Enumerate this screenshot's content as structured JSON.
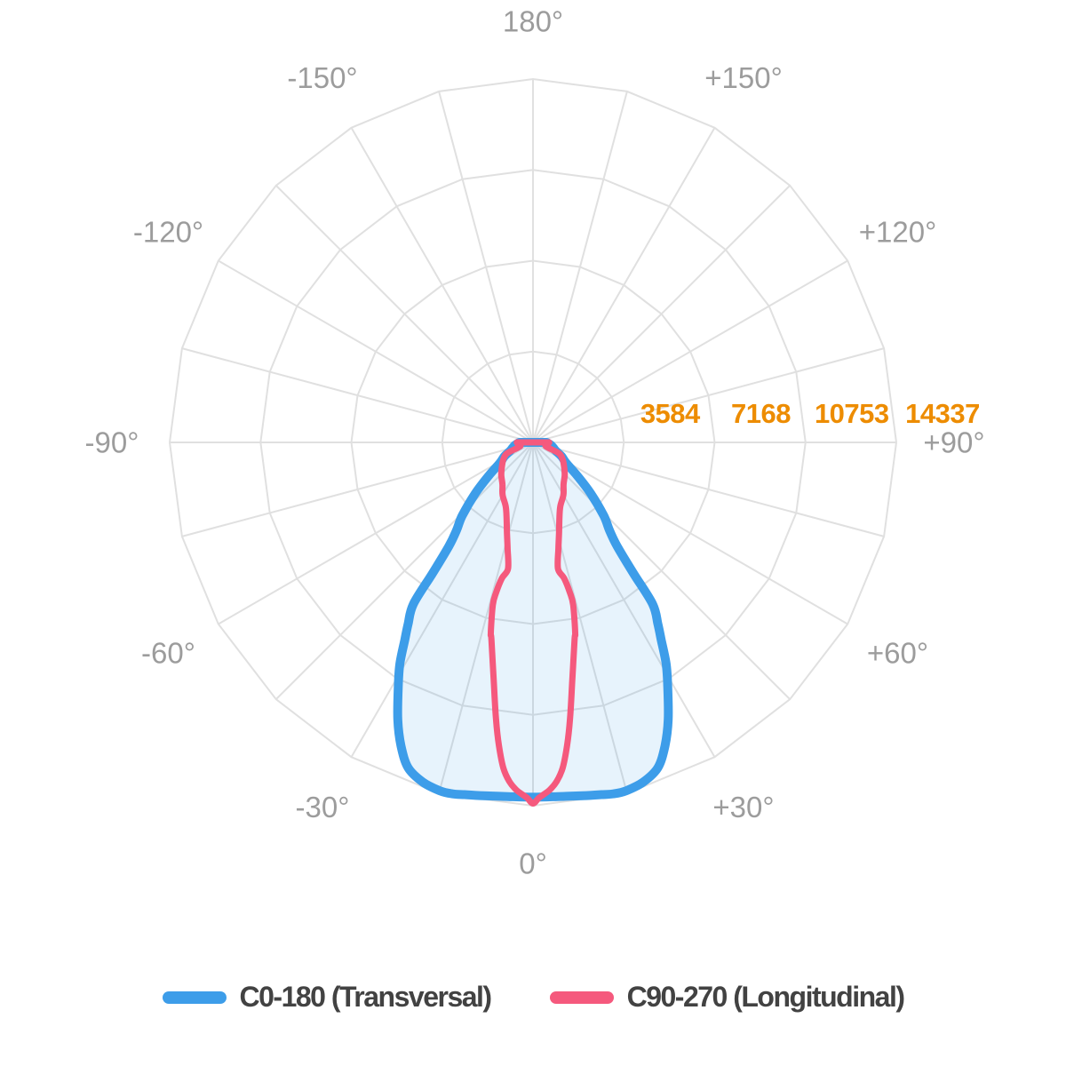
{
  "chart_data": {
    "type": "line",
    "variant": "polar-photometric-light-distribution",
    "orientation": "zero-angle-at-bottom",
    "angle_axis": {
      "label_color": "#9c9c9c",
      "spoke_step_deg": 15,
      "labels": [
        {
          "deg": 0,
          "label": "0°"
        },
        {
          "deg": 30,
          "label": "+30°"
        },
        {
          "deg": 60,
          "label": "+60°"
        },
        {
          "deg": 90,
          "label": "+90°"
        },
        {
          "deg": 120,
          "label": "+120°"
        },
        {
          "deg": 150,
          "label": "+150°"
        },
        {
          "deg": 180,
          "label": "180°"
        },
        {
          "deg": -150,
          "label": "-150°"
        },
        {
          "deg": -120,
          "label": "-120°"
        },
        {
          "deg": -90,
          "label": "-90°"
        },
        {
          "deg": -60,
          "label": "-60°"
        },
        {
          "deg": -30,
          "label": "-30°"
        }
      ]
    },
    "radius_axis": {
      "max": 14337,
      "rings": 4,
      "tick_color": "#ED8C00",
      "ticks": [
        {
          "value": 3584,
          "label": "3584"
        },
        {
          "value": 7168,
          "label": "7168"
        },
        {
          "value": 10753,
          "label": "10753"
        },
        {
          "value": 14337,
          "label": "14337"
        }
      ]
    },
    "grid": {
      "shape": "polygon",
      "line_color": "#e0e0e0"
    },
    "series": [
      {
        "name": "C0-180 (Transversal)",
        "color": "#3d9de9",
        "fill": "rgba(61,157,233,0.12)",
        "stroke_width": 10,
        "symmetric": true,
        "points_deg_value": [
          [
            0,
            14000
          ],
          [
            4,
            14010
          ],
          [
            8,
            14080
          ],
          [
            11,
            14160
          ],
          [
            13,
            14230
          ],
          [
            15,
            14230
          ],
          [
            18,
            14090
          ],
          [
            21,
            13750
          ],
          [
            23.5,
            13060
          ],
          [
            26,
            12170
          ],
          [
            29,
            10960
          ],
          [
            31,
            10200
          ],
          [
            33,
            9290
          ],
          [
            34.5,
            8700
          ],
          [
            36.5,
            7940
          ],
          [
            37.5,
            6500
          ],
          [
            39,
            5280
          ],
          [
            41,
            4600
          ],
          [
            44,
            4020
          ],
          [
            48.5,
            3040
          ],
          [
            53,
            2190
          ],
          [
            58,
            1550
          ],
          [
            64,
            1250
          ],
          [
            70,
            950
          ],
          [
            76,
            820
          ],
          [
            82,
            700
          ],
          [
            90,
            540
          ]
        ]
      },
      {
        "name": "C90-270 (Longitudinal)",
        "color": "#f5597d",
        "fill": "none",
        "stroke_width": 7,
        "symmetric": true,
        "points_deg_value": [
          [
            0,
            14250
          ],
          [
            1,
            14020
          ],
          [
            2.7,
            13740
          ],
          [
            4,
            13410
          ],
          [
            5.2,
            12900
          ],
          [
            6.4,
            12050
          ],
          [
            7.6,
            11030
          ],
          [
            9.2,
            9650
          ],
          [
            11.9,
            7950
          ],
          [
            12.5,
            7700
          ],
          [
            13.9,
            6600
          ],
          [
            13.8,
            6100
          ],
          [
            12.9,
            5500
          ],
          [
            11.2,
            5080
          ],
          [
            13.5,
            4300
          ],
          [
            16,
            3730
          ],
          [
            19,
            3200
          ],
          [
            23,
            2750
          ],
          [
            30,
            2400
          ],
          [
            36,
            2050
          ],
          [
            44,
            1800
          ],
          [
            52,
            1556
          ],
          [
            60,
            1350
          ],
          [
            67,
            1114
          ],
          [
            72,
            550
          ],
          [
            78,
            570
          ],
          [
            84,
            600
          ],
          [
            90,
            640
          ]
        ]
      }
    ],
    "legend": {
      "items": [
        {
          "label": "C0-180 (Transversal)",
          "color": "#3d9de9"
        },
        {
          "label": "C90-270 (Longitudinal)",
          "color": "#f5597d"
        }
      ]
    }
  }
}
